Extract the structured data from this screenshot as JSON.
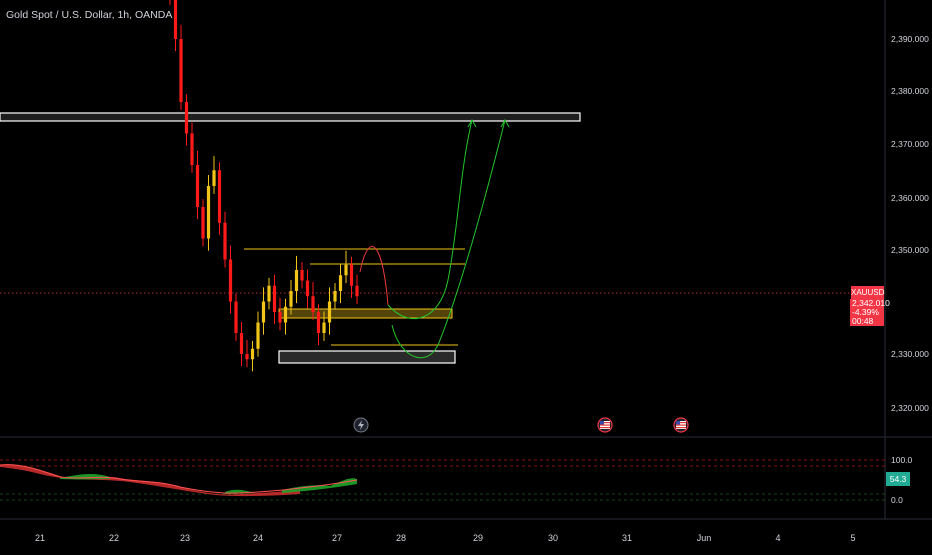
{
  "header": {
    "title": "Gold Spot / U.S. Dollar, 1h, OANDA"
  },
  "price_axis": {
    "labels": [
      "2,390.000",
      "2,380.000",
      "2,370.000",
      "2,360.000",
      "2,350.000",
      "2,330.000",
      "2,320.000"
    ]
  },
  "time_axis": {
    "labels": [
      "21",
      "22",
      "23",
      "24",
      "27",
      "28",
      "29",
      "30",
      "31",
      "Jun",
      "4",
      "5"
    ]
  },
  "last_price": {
    "symbol": "XAUUSD",
    "price": "2,342.010",
    "change": "-4.39%",
    "countdown": "00:48"
  },
  "oscillator": {
    "levels": [
      "100.0",
      "0.0"
    ],
    "value": "54.3"
  },
  "events": {
    "icons": [
      "lightning-event-icon",
      "us-flag-event-icon",
      "us-flag-event-icon"
    ]
  },
  "colors": {
    "background": "#000000",
    "up_candle": "#f0c419",
    "down_candle": "#ff1a1a",
    "resistance_zone": "#ffffff",
    "support_zone": "#f0c419",
    "bull_projection": "#22c52a",
    "bear_projection": "#e53935",
    "price_line": "#f23645",
    "osc_up": "#1fa52a",
    "osc_down": "#d32f2f"
  },
  "chart_data": {
    "type": "candlestick",
    "symbol": "XAUUSD",
    "timeframe": "1h",
    "ylim": [
      2315,
      2397
    ],
    "annotations": {
      "resistance_zone": [
        2374.6,
        2376.0
      ],
      "upper_range_line": 2350,
      "mid_range_line": 2347.5,
      "support_zone": [
        2339.0,
        2341.0
      ],
      "lower_range_line": 2332.5,
      "bottom_zone": [
        2328.3,
        2330.6
      ]
    },
    "candles_close_path": [
      2398,
      2390,
      2378,
      2372,
      2366,
      2358,
      2352,
      2362,
      2365,
      2355,
      2348,
      2340,
      2334,
      2330,
      2329,
      2331,
      2336,
      2340,
      2343,
      2338,
      2336,
      2339,
      2342,
      2346,
      2344,
      2341,
      2338,
      2334,
      2336,
      2340,
      2342,
      2345,
      2347,
      2343,
      2341
    ]
  }
}
